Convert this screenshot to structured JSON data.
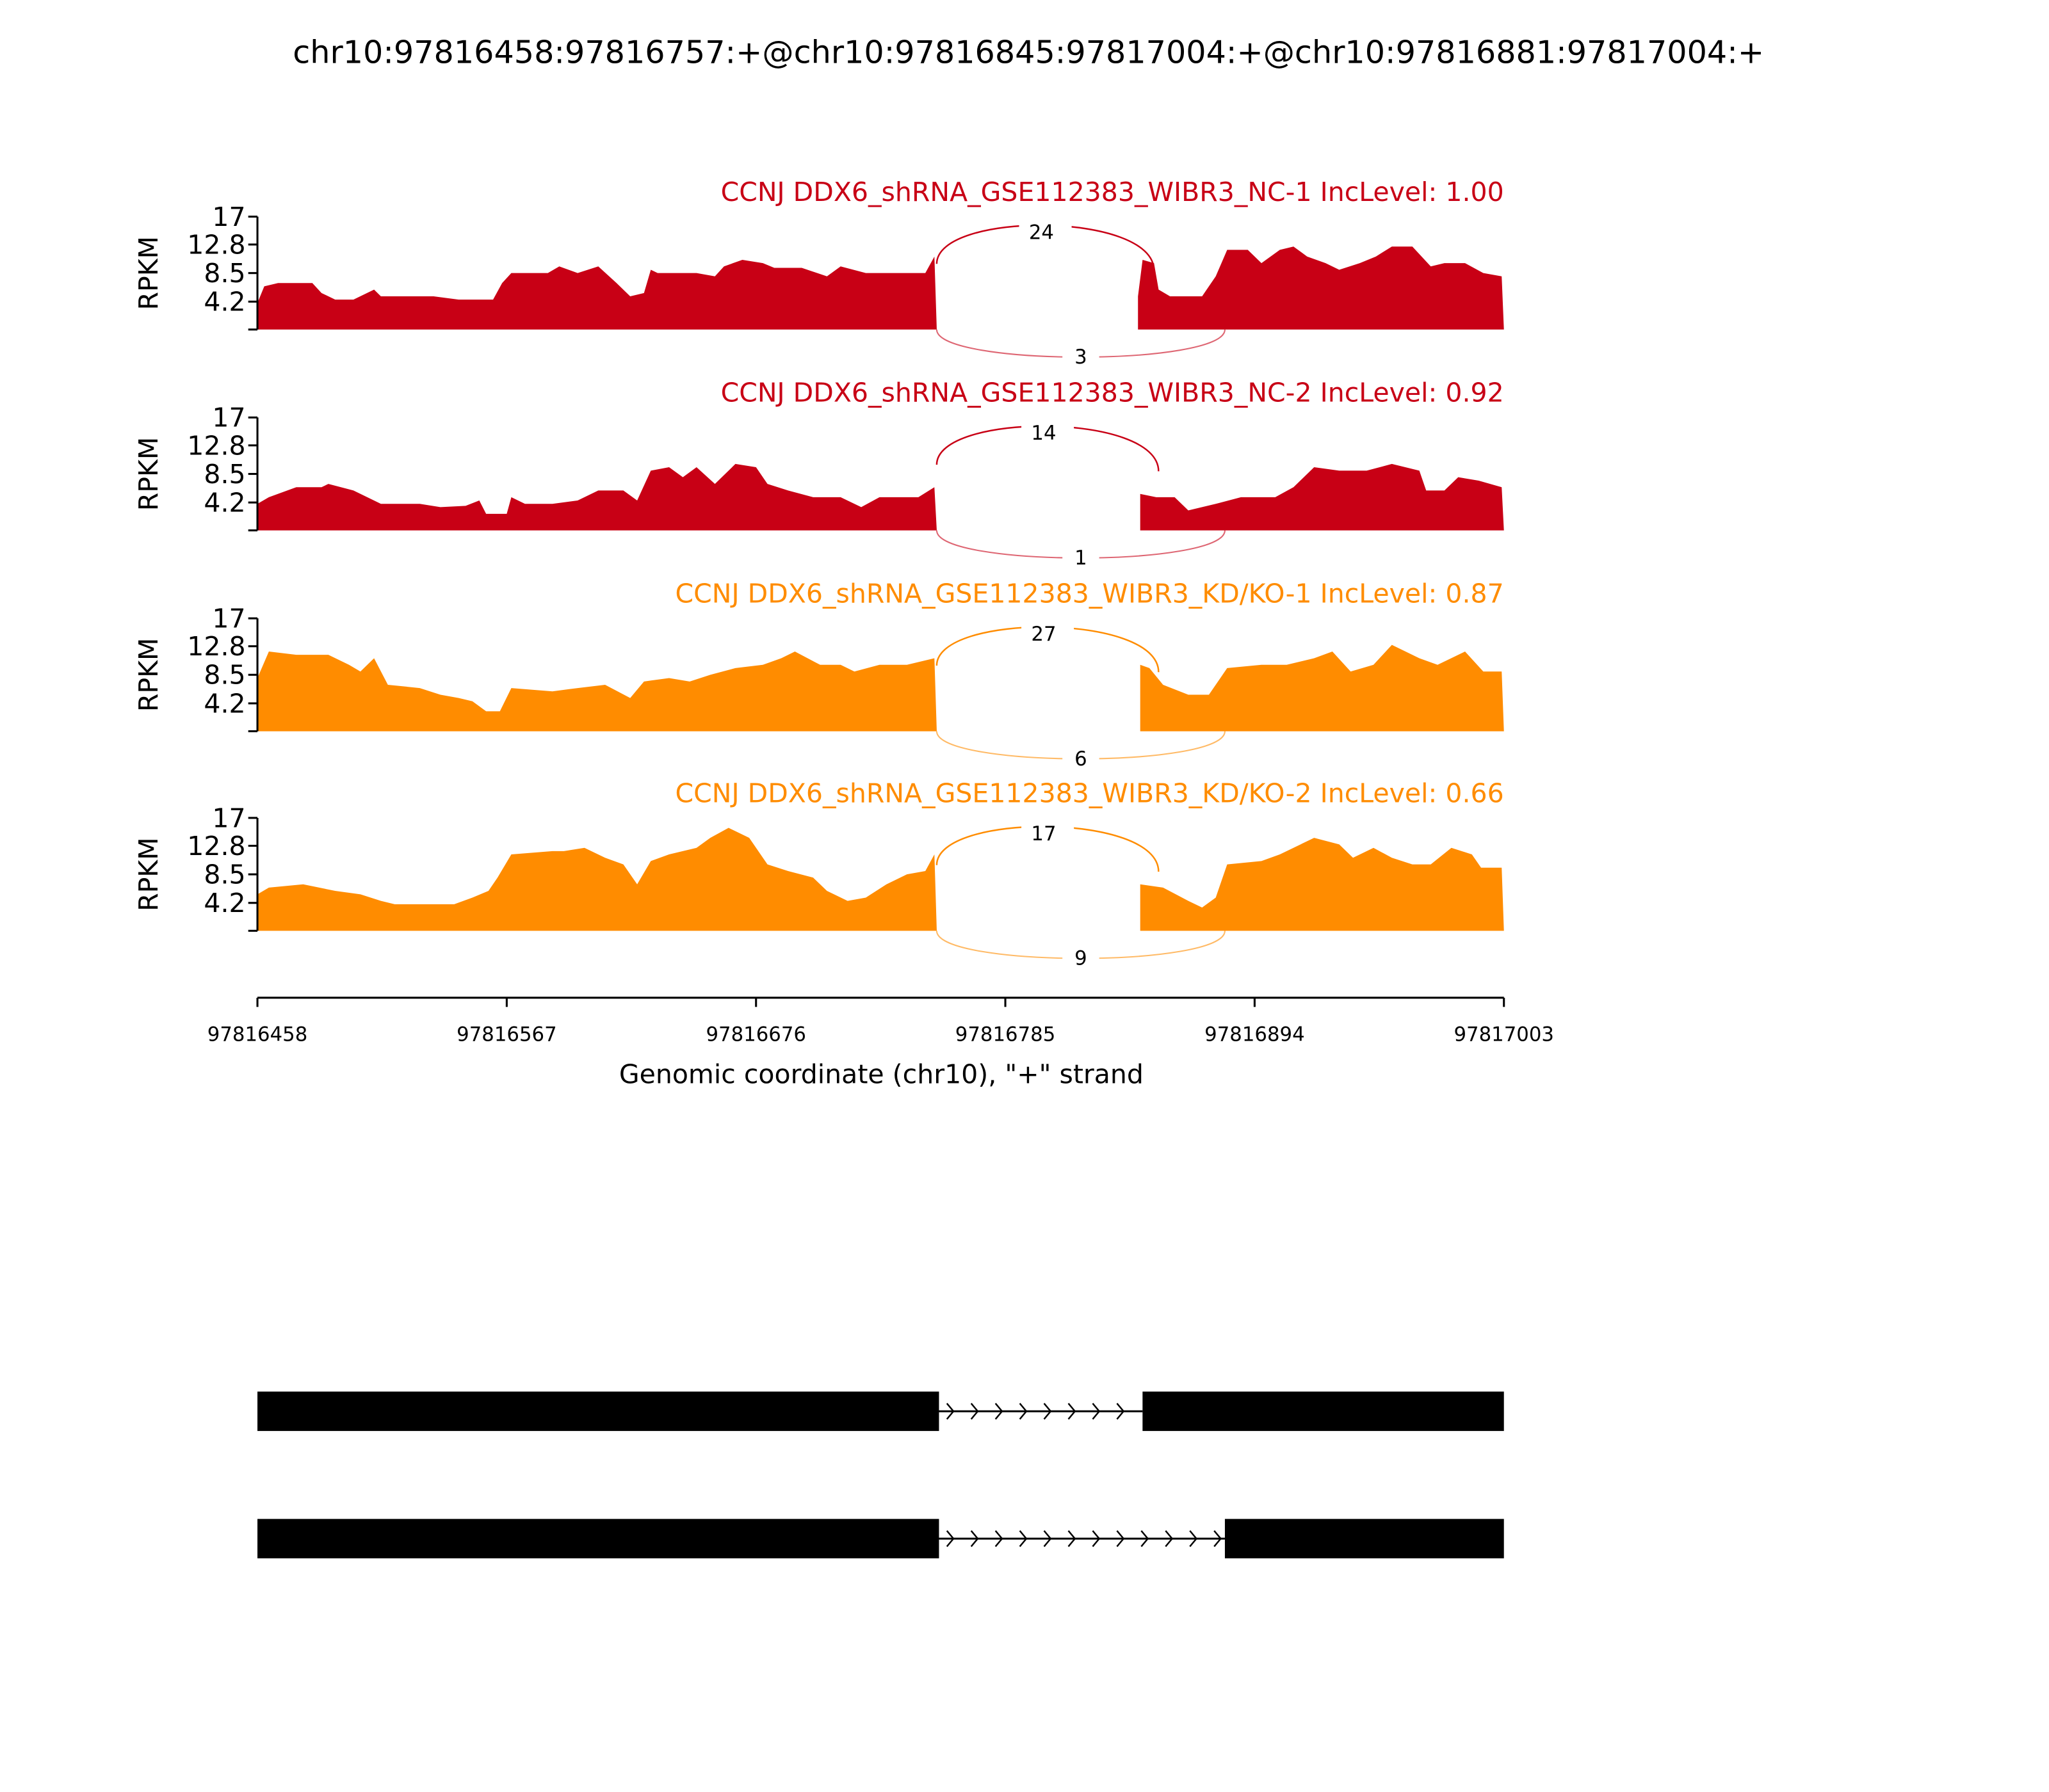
{
  "chart_data": {
    "type": "area",
    "title": "chr10:97816458:97816757:+@chr10:97816845:97817004:+@chr10:97816881:97817004:+",
    "xlabel": "Genomic coordinate (chr10), \"+\" strand",
    "ylabel": "RPKM",
    "x_origin": 97816458,
    "xlim": [
      97816458,
      97817003
    ],
    "x_ticks": [
      "97816458",
      "97816567",
      "97816676",
      "97816785",
      "97816894",
      "97817003"
    ],
    "ylim": [
      0,
      17
    ],
    "y_ticks": [
      "17",
      "12.8",
      "8.5",
      "4.2"
    ],
    "colors": {
      "NC": "#c80015",
      "KD": "#ff8c00"
    },
    "tracks": [
      {
        "label": "CCNJ DDX6_shRNA_GSE112383_WIBR3_NC-1 IncLevel: 1.00",
        "color": "#c80015",
        "junction_upper": {
          "from": 297,
          "to": 392,
          "count": "24"
        },
        "junction_lower": {
          "from": 297,
          "to": 423,
          "count": "3"
        },
        "coverage_offset_rpkm": [
          [
            0,
            4
          ],
          [
            3,
            6.5
          ],
          [
            9,
            7
          ],
          [
            24,
            7
          ],
          [
            28,
            5.5
          ],
          [
            34,
            4.5
          ],
          [
            42,
            4.5
          ],
          [
            51,
            6
          ],
          [
            54,
            5
          ],
          [
            77,
            5
          ],
          [
            88,
            4.5
          ],
          [
            103,
            4.5
          ],
          [
            107,
            7
          ],
          [
            111,
            8.5
          ],
          [
            127,
            8.5
          ],
          [
            132,
            9.5
          ],
          [
            140,
            8.5
          ],
          [
            149,
            9.5
          ],
          [
            157,
            7
          ],
          [
            163,
            5
          ],
          [
            169,
            5.5
          ],
          [
            172,
            9
          ],
          [
            175,
            8.5
          ],
          [
            192,
            8.5
          ],
          [
            200,
            8
          ],
          [
            204,
            9.5
          ],
          [
            212,
            10.5
          ],
          [
            221,
            10
          ],
          [
            226,
            9.3
          ],
          [
            238,
            9.3
          ],
          [
            249,
            8
          ],
          [
            255,
            9.5
          ],
          [
            266,
            8.5
          ],
          [
            284,
            8.5
          ],
          [
            292,
            8.5
          ],
          [
            296,
            11
          ],
          [
            297,
            0
          ],
          [
            385,
            0
          ],
          [
            385,
            5
          ],
          [
            387,
            10.5
          ],
          [
            392,
            10
          ],
          [
            394,
            6
          ],
          [
            399,
            5
          ],
          [
            413,
            5
          ],
          [
            419,
            8
          ],
          [
            424,
            12
          ],
          [
            433,
            12
          ],
          [
            439,
            10
          ],
          [
            447,
            12
          ],
          [
            453,
            12.5
          ],
          [
            459,
            11
          ],
          [
            467,
            10
          ],
          [
            473,
            9
          ],
          [
            482,
            10
          ],
          [
            489,
            11
          ],
          [
            496,
            12.5
          ],
          [
            505,
            12.5
          ],
          [
            513,
            9.5
          ],
          [
            519,
            10
          ],
          [
            528,
            10
          ],
          [
            536,
            8.5
          ],
          [
            544,
            8
          ]
        ]
      },
      {
        "label": "CCNJ DDX6_shRNA_GSE112383_WIBR3_NC-2 IncLevel: 0.92",
        "color": "#c80015",
        "junction_upper": {
          "from": 297,
          "to": 394,
          "count": "14"
        },
        "junction_lower": {
          "from": 297,
          "to": 423,
          "count": "1"
        },
        "coverage_offset_rpkm": [
          [
            0,
            4
          ],
          [
            5,
            5
          ],
          [
            17,
            6.5
          ],
          [
            28,
            6.5
          ],
          [
            31,
            7
          ],
          [
            42,
            6
          ],
          [
            54,
            4
          ],
          [
            71,
            4
          ],
          [
            80,
            3.5
          ],
          [
            91,
            3.7
          ],
          [
            97,
            4.5
          ],
          [
            100,
            2.5
          ],
          [
            109,
            2.5
          ],
          [
            111,
            5
          ],
          [
            117,
            4
          ],
          [
            129,
            4
          ],
          [
            140,
            4.5
          ],
          [
            149,
            6
          ],
          [
            160,
            6
          ],
          [
            166,
            4.5
          ],
          [
            172,
            9
          ],
          [
            180,
            9.5
          ],
          [
            186,
            8
          ],
          [
            192,
            9.5
          ],
          [
            200,
            7
          ],
          [
            209,
            10
          ],
          [
            218,
            9.5
          ],
          [
            223,
            7
          ],
          [
            232,
            6
          ],
          [
            243,
            5
          ],
          [
            255,
            5
          ],
          [
            264,
            3.5
          ],
          [
            272,
            5
          ],
          [
            289,
            5
          ],
          [
            296,
            6.5
          ],
          [
            297,
            0
          ],
          [
            386,
            0
          ],
          [
            386,
            5.5
          ],
          [
            393,
            5
          ],
          [
            401,
            5
          ],
          [
            407,
            3
          ],
          [
            419,
            4
          ],
          [
            430,
            5
          ],
          [
            445,
            5
          ],
          [
            453,
            6.5
          ],
          [
            462,
            9.5
          ],
          [
            473,
            9
          ],
          [
            485,
            9
          ],
          [
            496,
            10
          ],
          [
            508,
            9
          ],
          [
            511,
            6
          ],
          [
            519,
            6
          ],
          [
            525,
            8
          ],
          [
            534,
            7.5
          ],
          [
            544,
            6.5
          ]
        ]
      },
      {
        "label": "CCNJ DDX6_shRNA_GSE112383_WIBR3_KD/KO-1 IncLevel: 0.87",
        "color": "#ff8c00",
        "junction_upper": {
          "from": 297,
          "to": 394,
          "count": "27"
        },
        "junction_lower": {
          "from": 297,
          "to": 423,
          "count": "6"
        },
        "coverage_offset_rpkm": [
          [
            0,
            8
          ],
          [
            5,
            12
          ],
          [
            17,
            11.5
          ],
          [
            31,
            11.5
          ],
          [
            40,
            10
          ],
          [
            45,
            9
          ],
          [
            51,
            11
          ],
          [
            57,
            7
          ],
          [
            71,
            6.5
          ],
          [
            80,
            5.5
          ],
          [
            88,
            5
          ],
          [
            94,
            4.5
          ],
          [
            100,
            3
          ],
          [
            106,
            3
          ],
          [
            111,
            6.5
          ],
          [
            129,
            6
          ],
          [
            140,
            6.5
          ],
          [
            152,
            7
          ],
          [
            163,
            5
          ],
          [
            169,
            7.5
          ],
          [
            180,
            8
          ],
          [
            189,
            7.5
          ],
          [
            198,
            8.5
          ],
          [
            209,
            9.5
          ],
          [
            221,
            10
          ],
          [
            229,
            11
          ],
          [
            235,
            12
          ],
          [
            246,
            10
          ],
          [
            255,
            10
          ],
          [
            261,
            9
          ],
          [
            272,
            10
          ],
          [
            284,
            10
          ],
          [
            296,
            11
          ],
          [
            297,
            0
          ],
          [
            386,
            0
          ],
          [
            386,
            10
          ],
          [
            390,
            9.5
          ],
          [
            396,
            7
          ],
          [
            407,
            5.5
          ],
          [
            416,
            5.5
          ],
          [
            424,
            9.5
          ],
          [
            439,
            10
          ],
          [
            450,
            10
          ],
          [
            462,
            11
          ],
          [
            470,
            12
          ],
          [
            478,
            9
          ],
          [
            488,
            10
          ],
          [
            496,
            13
          ],
          [
            508,
            11
          ],
          [
            516,
            10
          ],
          [
            528,
            12
          ],
          [
            536,
            9
          ],
          [
            544,
            9
          ]
        ]
      },
      {
        "label": "CCNJ DDX6_shRNA_GSE112383_WIBR3_KD/KO-2 IncLevel: 0.66",
        "color": "#ff8c00",
        "junction_upper": {
          "from": 297,
          "to": 394,
          "count": "17"
        },
        "junction_lower": {
          "from": 297,
          "to": 423,
          "count": "9"
        },
        "coverage_offset_rpkm": [
          [
            0,
            5.5
          ],
          [
            5,
            6.5
          ],
          [
            20,
            7
          ],
          [
            34,
            6
          ],
          [
            45,
            5.5
          ],
          [
            54,
            4.5
          ],
          [
            60,
            4
          ],
          [
            86,
            4
          ],
          [
            94,
            5
          ],
          [
            101,
            6
          ],
          [
            105,
            8
          ],
          [
            111,
            11.5
          ],
          [
            129,
            12
          ],
          [
            134,
            12
          ],
          [
            143,
            12.5
          ],
          [
            152,
            11
          ],
          [
            160,
            10
          ],
          [
            166,
            7
          ],
          [
            172,
            10.5
          ],
          [
            180,
            11.5
          ],
          [
            192,
            12.5
          ],
          [
            198,
            14
          ],
          [
            206,
            15.5
          ],
          [
            215,
            14
          ],
          [
            223,
            10
          ],
          [
            232,
            9
          ],
          [
            243,
            8
          ],
          [
            249,
            6
          ],
          [
            258,
            4.5
          ],
          [
            266,
            5
          ],
          [
            275,
            7
          ],
          [
            284,
            8.5
          ],
          [
            292,
            9
          ],
          [
            296,
            11.5
          ],
          [
            297,
            0
          ],
          [
            386,
            0
          ],
          [
            386,
            7
          ],
          [
            396,
            6.5
          ],
          [
            407,
            4.5
          ],
          [
            413,
            3.5
          ],
          [
            419,
            5
          ],
          [
            424,
            10
          ],
          [
            439,
            10.5
          ],
          [
            447,
            11.5
          ],
          [
            462,
            14
          ],
          [
            473,
            13
          ],
          [
            479,
            11
          ],
          [
            488,
            12.5
          ],
          [
            496,
            11
          ],
          [
            505,
            10
          ],
          [
            513,
            10
          ],
          [
            522,
            12.5
          ],
          [
            531,
            11.5
          ],
          [
            535,
            9.5
          ],
          [
            544,
            9.5
          ]
        ]
      }
    ],
    "gene_models": [
      {
        "exons_offset": [
          [
            0,
            298
          ],
          [
            387,
            545
          ]
        ],
        "introns_offset": [
          [
            298,
            387
          ]
        ]
      },
      {
        "exons_offset": [
          [
            0,
            298
          ],
          [
            423,
            545
          ]
        ],
        "introns_offset": [
          [
            298,
            423
          ]
        ]
      }
    ]
  }
}
